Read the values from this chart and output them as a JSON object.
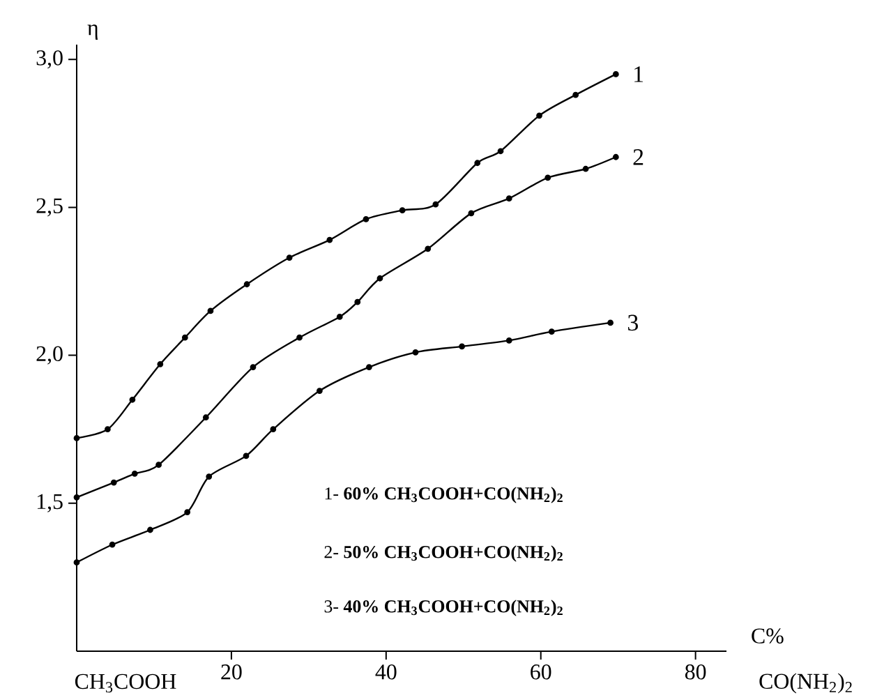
{
  "chart_data": {
    "type": "line",
    "xlabel": "C%",
    "ylabel": "η",
    "xlim": [
      0,
      84
    ],
    "ylim": [
      1.0,
      3.05
    ],
    "xticks": [
      20,
      40,
      60,
      80
    ],
    "yticks": [
      {
        "value": 1.5,
        "label": "1,5"
      },
      {
        "value": 2.0,
        "label": "2,0"
      },
      {
        "value": 2.5,
        "label": "2,5"
      },
      {
        "value": 3.0,
        "label": "3,0"
      }
    ],
    "marker": "circle",
    "line_style": "solid",
    "series": [
      {
        "name": "1",
        "color": "#000000",
        "x": [
          0,
          4,
          7.2,
          10.8,
          14,
          17.3,
          22,
          27.5,
          32.7,
          37.4,
          42.1,
          46.4,
          51.8,
          54.8,
          59.8,
          64.5,
          69.7
        ],
        "values": [
          1.72,
          1.75,
          1.85,
          1.97,
          2.06,
          2.15,
          2.24,
          2.33,
          2.39,
          2.46,
          2.49,
          2.51,
          2.65,
          2.69,
          2.81,
          2.88,
          2.95
        ]
      },
      {
        "name": "2",
        "color": "#000000",
        "x": [
          0,
          4.8,
          7.5,
          10.6,
          16.7,
          22.8,
          28.8,
          34,
          36.3,
          39.2,
          45.4,
          51,
          55.9,
          60.9,
          65.8,
          69.7
        ],
        "values": [
          1.52,
          1.57,
          1.6,
          1.63,
          1.79,
          1.96,
          2.06,
          2.13,
          2.18,
          2.26,
          2.36,
          2.48,
          2.53,
          2.6,
          2.63,
          2.67
        ]
      },
      {
        "name": "3",
        "color": "#000000",
        "x": [
          0,
          4.6,
          9.5,
          14.3,
          17.1,
          21.9,
          25.4,
          31.4,
          37.8,
          43.8,
          49.8,
          55.9,
          61.4,
          69
        ],
        "values": [
          1.3,
          1.36,
          1.41,
          1.47,
          1.59,
          1.66,
          1.75,
          1.88,
          1.96,
          2.01,
          2.03,
          2.05,
          2.08,
          2.11
        ]
      }
    ],
    "annotations": [
      "1- **60% CH$_{3}$COOH+CO(NH$_{2}$)$_{2}$**",
      "2- **50% CH$_{3}$COOH+CO(NH$_{2}$)$_{2}$**",
      "3- **40% CH$_{3}$COOH+CO(NH$_{2}$)$_{2}$**",
      "CH$_{3}$COOH",
      "CO(NH$_{2}$)$_{2}$"
    ]
  }
}
